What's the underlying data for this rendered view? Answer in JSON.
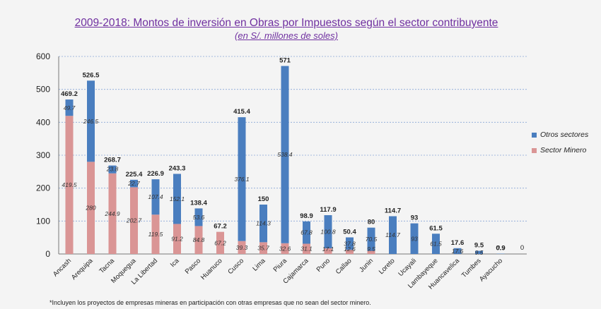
{
  "title": "2009-2018: Montos de inversión en Obras por Impuestos según el sector contribuyente",
  "subtitle": "(en S/. millones de soles)",
  "footnote": "*Incluyen los proyectos de empresas mineras en participación con otras empresas que no sean del sector minero.",
  "colors": {
    "otros": "#4a7ebf",
    "minero": "#da9595"
  },
  "chart_data": {
    "type": "bar",
    "stacked": true,
    "ylim": [
      0,
      600
    ],
    "yticks": [
      0,
      100,
      200,
      300,
      400,
      500,
      600
    ],
    "grid": true,
    "legend_position": "right",
    "categories": [
      "Ancash",
      "Arequipa",
      "Tacna",
      "Moquegua",
      "La Libertad",
      "Ica",
      "Pasco",
      "Huanuco",
      "Cusco",
      "Lima",
      "Piura",
      "Cajamarca",
      "Puno",
      "Callao",
      "Junin",
      "Loreto",
      "Ucayali",
      "Lambayeque",
      "Huancavelica",
      "Tumbes",
      "Ayacucho"
    ],
    "series": [
      {
        "name": "Sector Minero",
        "values": [
          419.5,
          280,
          244.9,
          202.7,
          119.5,
          91.2,
          84.8,
          67.2,
          39.3,
          35.7,
          32.6,
          31.1,
          17.1,
          12.6,
          9.5,
          0,
          0,
          0,
          0,
          0,
          0
        ],
        "labels": [
          "419.5",
          "280",
          "244.9",
          "202.7",
          "119.5",
          "91.2",
          "84.8",
          "67.2",
          "39.3",
          "35.7",
          "32.6",
          "31.1",
          "17.1",
          "12.6",
          "9.5",
          "",
          "",
          "",
          "",
          "",
          ""
        ]
      },
      {
        "name": "Otros sectores",
        "values": [
          49.7,
          246.5,
          23.8,
          22.7,
          107.4,
          152.1,
          53.6,
          0,
          376.1,
          114.3,
          538.4,
          67.8,
          100.8,
          37.8,
          70.5,
          114.7,
          93,
          61.5,
          17.6,
          9.5,
          0.9
        ],
        "labels": [
          "49.7",
          "246.5",
          "23.8",
          "22.7",
          "107.4",
          "152.1",
          "53.6",
          "",
          "376.1",
          "114.3",
          "538.4",
          "67.8",
          "100.8",
          "37.8",
          "70.5",
          "114.7",
          "93",
          "61.5",
          "17.6",
          "9.5",
          "0.9"
        ]
      }
    ],
    "totals": [
      "469.2",
      "526.5",
      "268.7",
      "225.4",
      "226.9",
      "243.3",
      "138.4",
      "67.2",
      "415.4",
      "150",
      "571",
      "98.9",
      "117.9",
      "50.4",
      "80",
      "114.7",
      "93",
      "61.5",
      "17.6",
      "9.5",
      "0.9"
    ],
    "extra_labels": [
      {
        "category": "Ayacucho",
        "text": "0.9"
      },
      {
        "category": "",
        "text": "0"
      }
    ]
  }
}
